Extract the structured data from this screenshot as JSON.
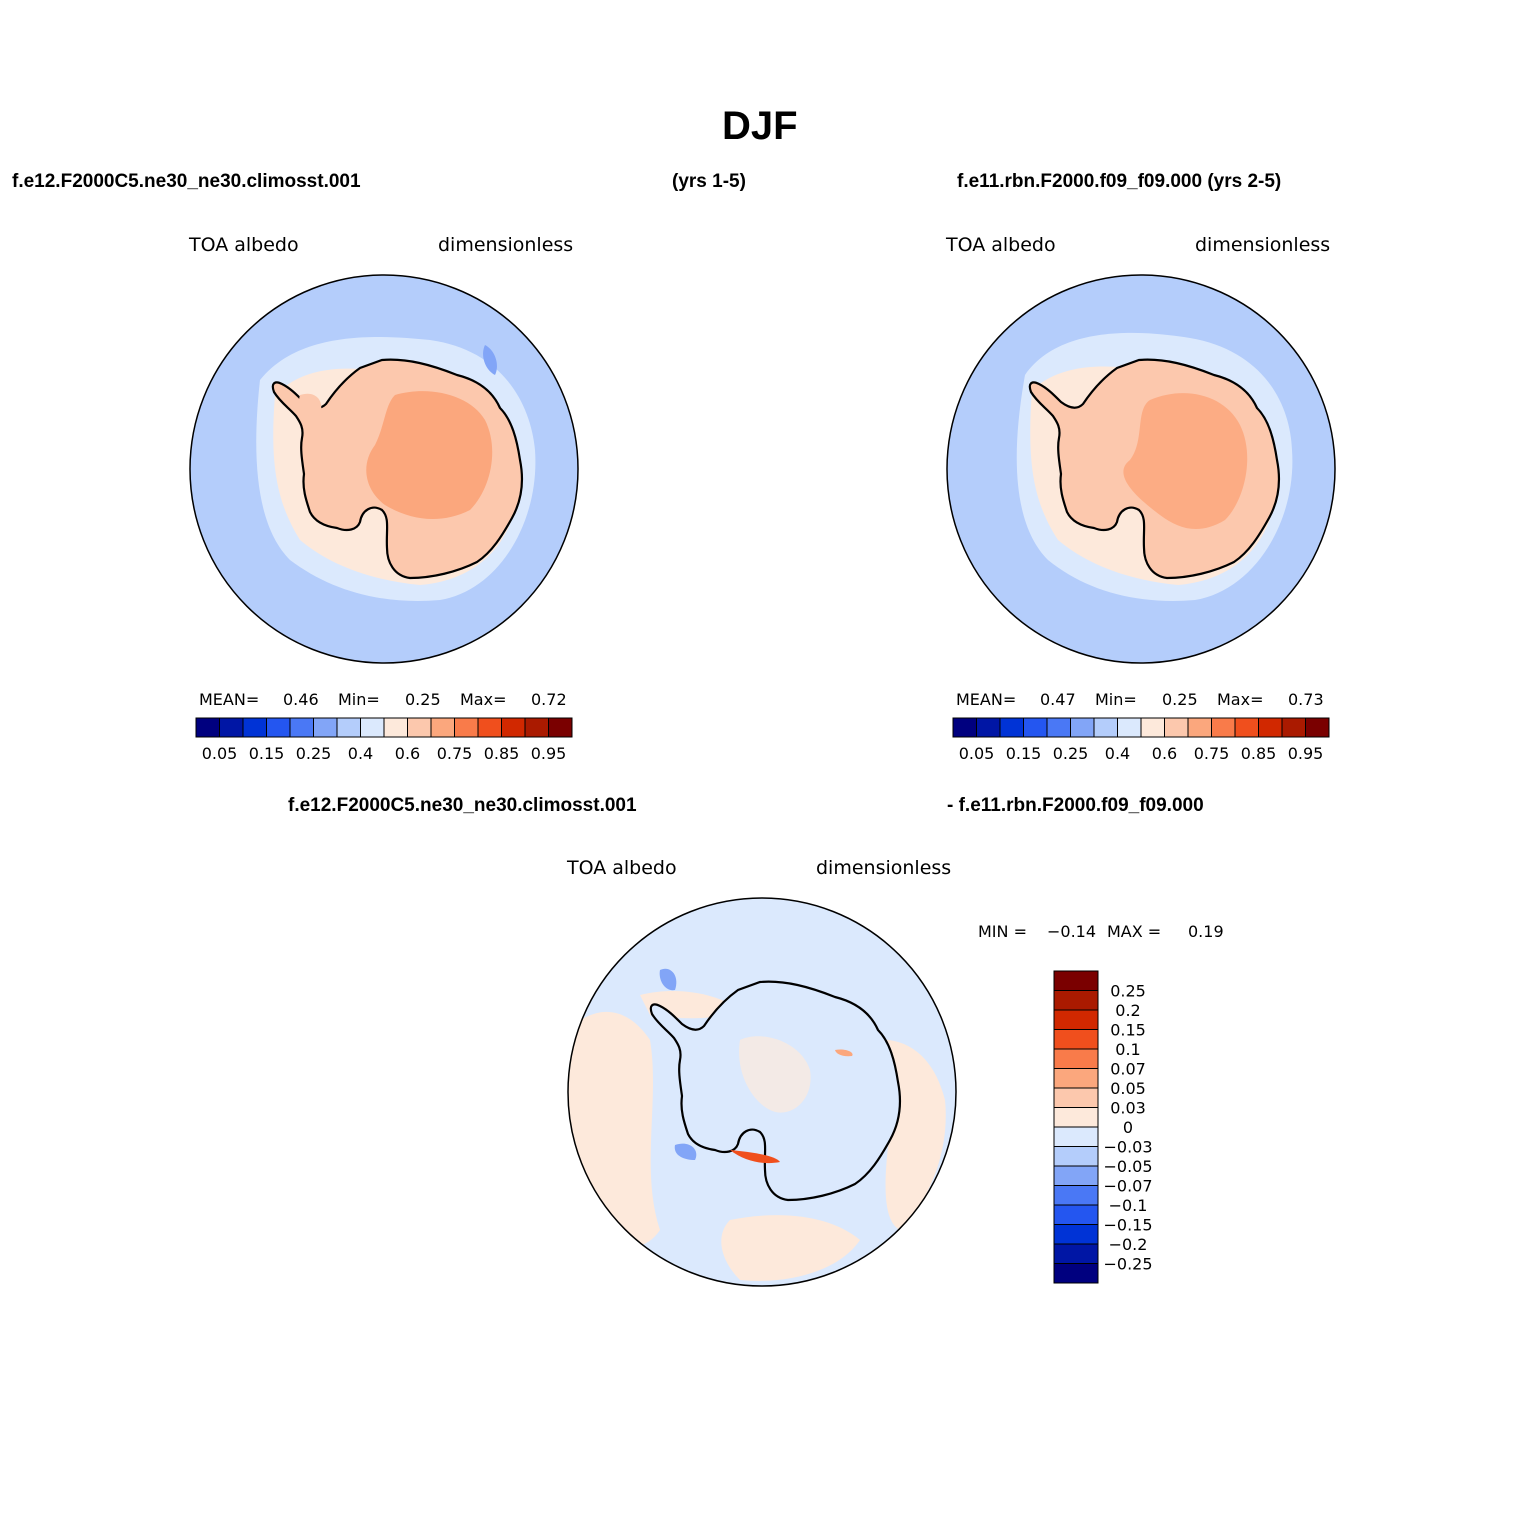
{
  "title": "DJF",
  "panel1": {
    "case": "f.e12.F2000C5.ne30_ne30.climosst.001",
    "years": "(yrs 1-5)",
    "variable": "TOA  albedo",
    "units": "dimensionless",
    "mean_label": "MEAN=",
    "mean": "0.46",
    "min_label": "Min=",
    "min": "0.25",
    "max_label": "Max=",
    "max": "0.72"
  },
  "panel2": {
    "case_years": "f.e11.rbn.F2000.f09_f09.000 (yrs 2-5)",
    "variable": "TOA  albedo",
    "units": "dimensionless",
    "mean_label": "MEAN=",
    "mean": "0.47",
    "min_label": "Min=",
    "min": "0.25",
    "max_label": "Max=",
    "max": "0.73"
  },
  "panel3": {
    "case_a": "f.e12.F2000C5.ne30_ne30.climosst.001",
    "case_b": "- f.e11.rbn.F2000.f09_f09.000",
    "variable": "TOA  albedo",
    "units": "dimensionless",
    "min_label": "MIN =",
    "min": "−0.14",
    "max_label": "MAX =",
    "max": "0.19"
  },
  "colorbar_abs": {
    "colors": [
      "#00007f",
      "#0016a5",
      "#0033d6",
      "#2456f0",
      "#4a78f5",
      "#82a5f7",
      "#b4cdfb",
      "#dbe9fd",
      "#fde9db",
      "#fcc8ad",
      "#fba77d",
      "#f97b4a",
      "#f04f1d",
      "#d12800",
      "#aa1a00",
      "#7a0000"
    ],
    "labels": [
      "0.05",
      "0.15",
      "0.25",
      "0.4",
      "0.6",
      "0.75",
      "0.85",
      "0.95"
    ]
  },
  "colorbar_diff": {
    "colors": [
      "#7a0000",
      "#aa1a00",
      "#d12800",
      "#f04f1d",
      "#f97b4a",
      "#fba77d",
      "#fcc8ad",
      "#fde9db",
      "#dbe9fd",
      "#b4cdfb",
      "#82a5f7",
      "#4a78f5",
      "#2456f0",
      "#0033d6",
      "#0016a5",
      "#00007f"
    ],
    "labels": [
      "0.25",
      "0.2",
      "0.15",
      "0.1",
      "0.07",
      "0.05",
      "0.03",
      "0",
      "−0.03",
      "−0.05",
      "−0.07",
      "−0.1",
      "−0.15",
      "−0.2",
      "−0.25"
    ]
  },
  "map_colors": {
    "ocean": "#b4cdfb",
    "sea_ice": "#dbe9fd",
    "coast_band": "#fde9db",
    "ice_sheet": "#fcc8ad",
    "plateau": "#fba77d",
    "diff_background": "#dbe9fd",
    "diff_pos": "#fde9db",
    "diff_mid": "#fcc8ad",
    "diff_strong": "#f04f1d",
    "diff_neg": "#82a5f7"
  }
}
